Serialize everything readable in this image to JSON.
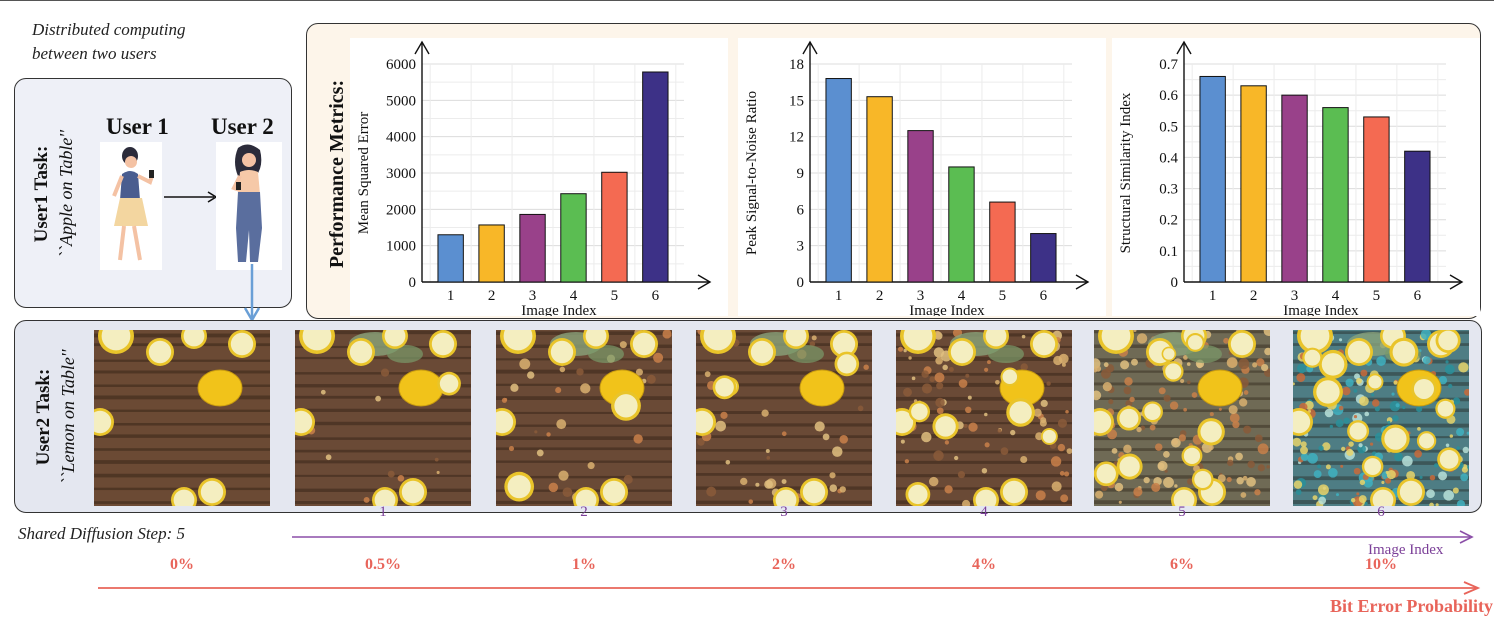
{
  "top_caption": [
    "Distributed computing",
    "between two users"
  ],
  "user1_task": {
    "title": "User1 Task:",
    "prompt": "``Apple on Table''"
  },
  "user2_task": {
    "title": "User2 Task:",
    "prompt": "``Lemon on Table''"
  },
  "users": {
    "user1": "User 1",
    "user2": "User 2"
  },
  "metrics_title": "Performance Metrics:",
  "shared_step": "Shared Diffusion Step: 5",
  "image_index_axis": {
    "label": "Image Index",
    "ticks": [
      "1",
      "2",
      "3",
      "4",
      "5",
      "6"
    ]
  },
  "bit_error_axis": {
    "label": "Bit Error Probability",
    "ticks": [
      "0%",
      "0.5%",
      "1%",
      "2%",
      "4%",
      "6%",
      "10%"
    ]
  },
  "colors": {
    "bars": [
      "#5b8fd0",
      "#f8b728",
      "#99418a",
      "#5bbd52",
      "#f46a52",
      "#3d3187"
    ],
    "image_index_arrow": "#8b4fa8",
    "bit_error_arrow": "#e8645a",
    "users_box_bg": "#eef0f7",
    "metrics_box_bg": "#fdf5ea",
    "images_box_bg": "#e4e7f0",
    "down_arrow": "#6a9fd6"
  },
  "chart_data": [
    {
      "type": "bar",
      "categories": [
        "1",
        "2",
        "3",
        "4",
        "5",
        "6"
      ],
      "values": [
        1300,
        1570,
        1860,
        2430,
        3020,
        5780
      ],
      "xlabel": "Image Index",
      "ylabel": "Mean Squared Error",
      "ylim": [
        0,
        6000
      ],
      "yticks": [
        "0",
        "1000",
        "2000",
        "3000",
        "4000",
        "5000",
        "6000"
      ],
      "grid": true
    },
    {
      "type": "bar",
      "categories": [
        "1",
        "2",
        "3",
        "4",
        "5",
        "6"
      ],
      "values": [
        16.8,
        15.3,
        12.5,
        9.5,
        6.6,
        4.0
      ],
      "xlabel": "Image Index",
      "ylabel": "Peak Signal-to-Noise Ratio",
      "ylim": [
        0,
        18
      ],
      "yticks": [
        "0",
        "3",
        "6",
        "9",
        "12",
        "15",
        "18"
      ],
      "grid": true
    },
    {
      "type": "bar",
      "categories": [
        "1",
        "2",
        "3",
        "4",
        "5",
        "6"
      ],
      "values": [
        0.66,
        0.63,
        0.6,
        0.56,
        0.53,
        0.42
      ],
      "xlabel": "Image Index",
      "ylabel": "Structural Similarity Index",
      "ylim": [
        0,
        0.7
      ],
      "yticks": [
        "0",
        "0.1",
        "0.2",
        "0.3",
        "0.4",
        "0.5",
        "0.6",
        "0.7"
      ],
      "grid": true
    }
  ],
  "images": [
    {
      "kind": "original"
    },
    {
      "index": "1",
      "noise": 0.05
    },
    {
      "index": "2",
      "noise": 0.15
    },
    {
      "index": "3",
      "noise": 0.2
    },
    {
      "index": "4",
      "noise": 0.45
    },
    {
      "index": "5",
      "noise": 0.7
    },
    {
      "index": "6",
      "noise": 0.95
    }
  ]
}
